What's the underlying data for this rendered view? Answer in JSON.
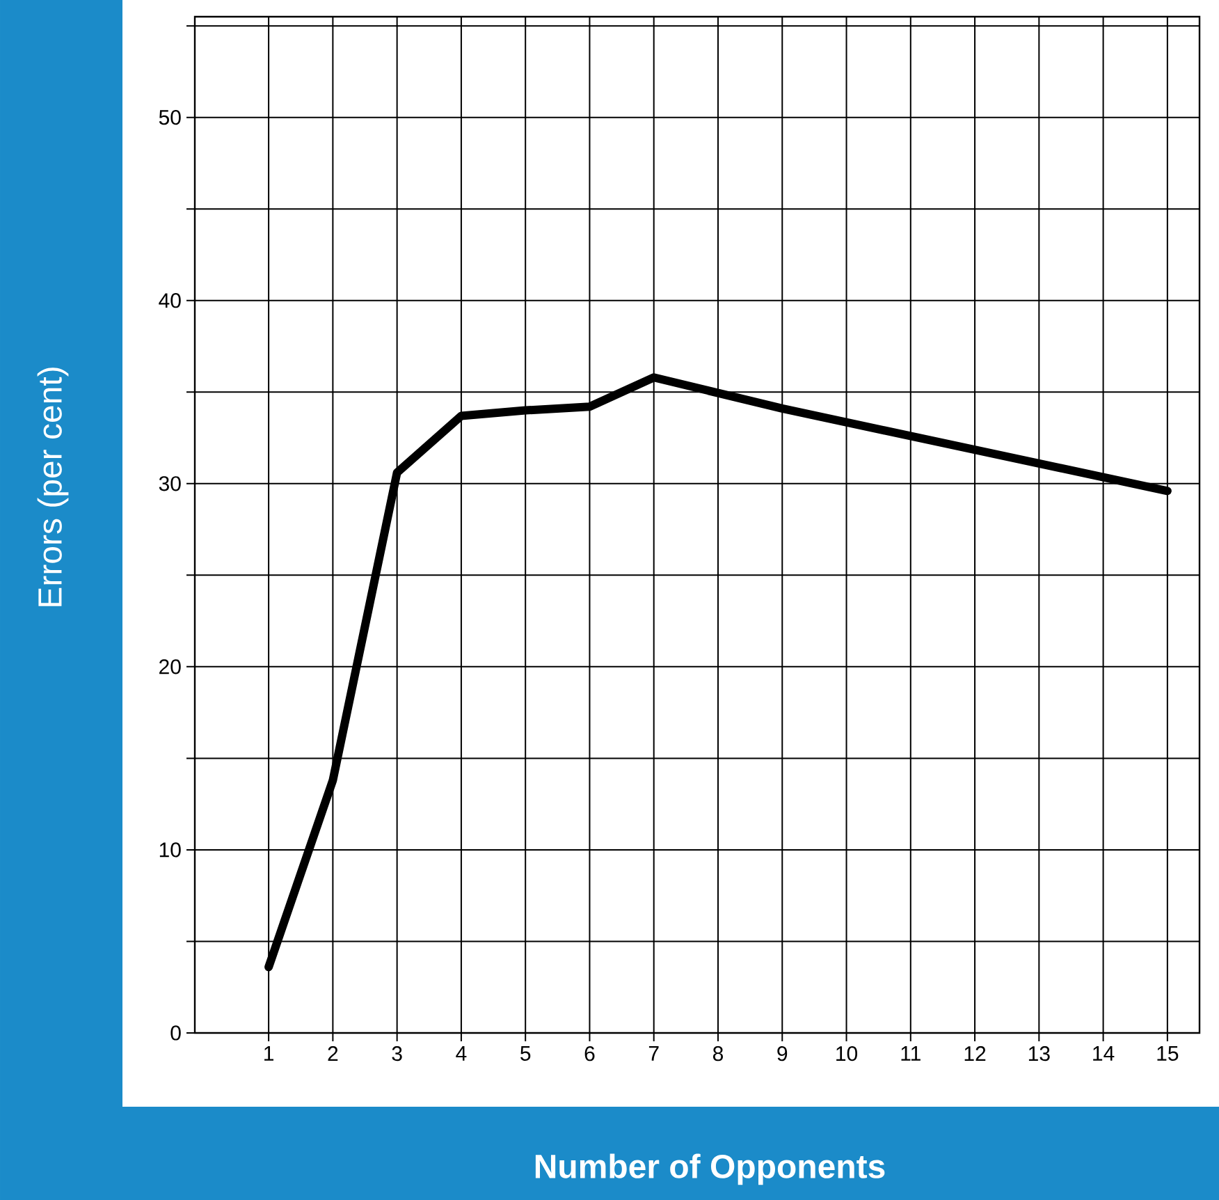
{
  "chart_data": {
    "type": "line",
    "xlabel": "Number of Opponents",
    "ylabel": "Errors (per cent)",
    "x": [
      1,
      2,
      3,
      4,
      5,
      6,
      7,
      9,
      15
    ],
    "series": [
      {
        "color": "#000000",
        "values": [
          3.6,
          13.8,
          30.6,
          33.7,
          34.0,
          34.2,
          35.8,
          34.1,
          29.6
        ]
      }
    ],
    "xlim": [
      -0.15,
      15.5
    ],
    "ylim": [
      0,
      55.5
    ],
    "xticks": [
      1,
      2,
      3,
      4,
      5,
      6,
      7,
      8,
      9,
      10,
      11,
      12,
      13,
      14,
      15
    ],
    "yticks": [
      0,
      {
        "value": 5,
        "label": null
      },
      10,
      {
        "value": 15,
        "label": null
      },
      20,
      {
        "value": 25,
        "label": null
      },
      30,
      {
        "value": 35,
        "label": null
      },
      40,
      {
        "value": 45,
        "label": null
      },
      50,
      {
        "value": 55,
        "label": null
      }
    ],
    "grid": true,
    "marker": "none",
    "line_style": "solid"
  }
}
